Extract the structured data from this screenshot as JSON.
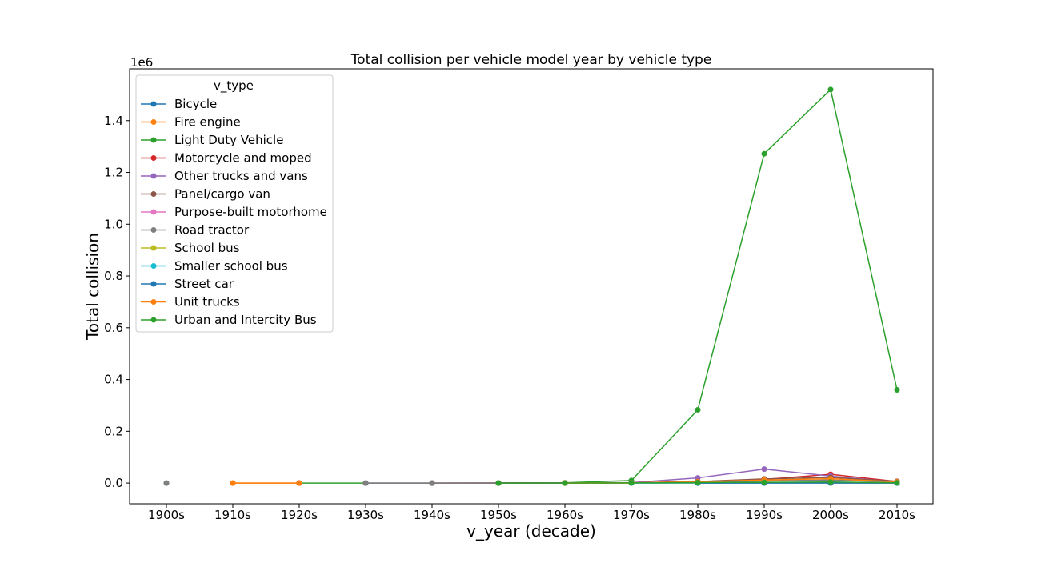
{
  "chart_data": {
    "type": "line",
    "title": "Total collision per vehicle model year by vehicle type",
    "xlabel": "v_year (decade)",
    "ylabel": "Total collision",
    "y_offset_label": "1e6",
    "categories": [
      "1900s",
      "1910s",
      "1920s",
      "1930s",
      "1940s",
      "1950s",
      "1960s",
      "1970s",
      "1980s",
      "1990s",
      "2000s",
      "2010s"
    ],
    "ylim": [
      -0.08,
      1.6
    ],
    "yticks": [
      0.0,
      0.2,
      0.4,
      0.6,
      0.8,
      1.0,
      1.2,
      1.4
    ],
    "ytick_labels": [
      "0.0",
      "0.2",
      "0.4",
      "0.6",
      "0.8",
      "1.0",
      "1.2",
      "1.4"
    ],
    "y_unit_scale": 1000000,
    "grid": false,
    "legend": {
      "title": "v_type",
      "placement": "top-left"
    },
    "series": [
      {
        "name": "Bicycle",
        "color": "#1f77b4",
        "values": [
          null,
          null,
          null,
          null,
          null,
          null,
          null,
          null,
          0.0002,
          0.0003,
          0.0004,
          0.0001
        ]
      },
      {
        "name": "Fire engine",
        "color": "#ff7f0e",
        "values": [
          null,
          0.0,
          0.0,
          null,
          null,
          null,
          0.0,
          0.0001,
          0.0003,
          0.0005,
          0.0006,
          0.0002
        ]
      },
      {
        "name": "Light Duty Vehicle",
        "color": "#2ca02c",
        "values": [
          0.0,
          null,
          0.0,
          0.0,
          0.0,
          0.0002,
          0.001,
          0.01,
          0.283,
          1.272,
          1.52,
          0.36
        ]
      },
      {
        "name": "Motorcycle and moped",
        "color": "#d62728",
        "values": [
          null,
          null,
          0.0,
          null,
          0.0,
          0.0001,
          0.0005,
          0.001,
          0.006,
          0.014,
          0.034,
          0.006
        ]
      },
      {
        "name": "Other trucks and vans",
        "color": "#9467bd",
        "values": [
          null,
          null,
          null,
          0.0,
          0.0,
          0.0,
          0.0004,
          0.002,
          0.02,
          0.054,
          0.027,
          0.004
        ]
      },
      {
        "name": "Panel/cargo van",
        "color": "#8c564b",
        "values": [
          null,
          null,
          null,
          null,
          null,
          0.0,
          0.0002,
          0.001,
          0.006,
          0.016,
          0.022,
          0.007
        ]
      },
      {
        "name": "Purpose-built motorhome",
        "color": "#e377c2",
        "values": [
          null,
          null,
          null,
          null,
          null,
          null,
          0.0,
          0.0003,
          0.001,
          0.002,
          0.002,
          0.0003
        ]
      },
      {
        "name": "Road tractor",
        "color": "#7f7f7f",
        "values": [
          0.0,
          null,
          null,
          0.0,
          0.0,
          0.0,
          0.0002,
          0.0008,
          0.003,
          0.008,
          0.012,
          0.004
        ]
      },
      {
        "name": "School bus",
        "color": "#bcbd22",
        "values": [
          null,
          null,
          null,
          null,
          null,
          null,
          0.0,
          0.0002,
          0.001,
          0.002,
          0.003,
          0.001
        ]
      },
      {
        "name": "Smaller school bus",
        "color": "#17becf",
        "values": [
          null,
          null,
          null,
          null,
          null,
          null,
          null,
          0.0,
          0.0003,
          0.0008,
          0.001,
          0.0004
        ]
      },
      {
        "name": "Street car",
        "color": "#1f77b4",
        "values": [
          null,
          null,
          null,
          null,
          null,
          null,
          null,
          null,
          0.0,
          0.0001,
          0.0002,
          0.0001
        ]
      },
      {
        "name": "Unit trucks",
        "color": "#ff7f0e",
        "values": [
          null,
          0.0,
          0.0,
          null,
          null,
          null,
          0.0001,
          0.001,
          0.005,
          0.012,
          0.017,
          0.005
        ]
      },
      {
        "name": "Urban and Intercity Bus",
        "color": "#2ca02c",
        "values": [
          null,
          null,
          null,
          null,
          null,
          0.0,
          0.0001,
          0.0006,
          0.002,
          0.003,
          0.004,
          0.001
        ]
      }
    ]
  }
}
